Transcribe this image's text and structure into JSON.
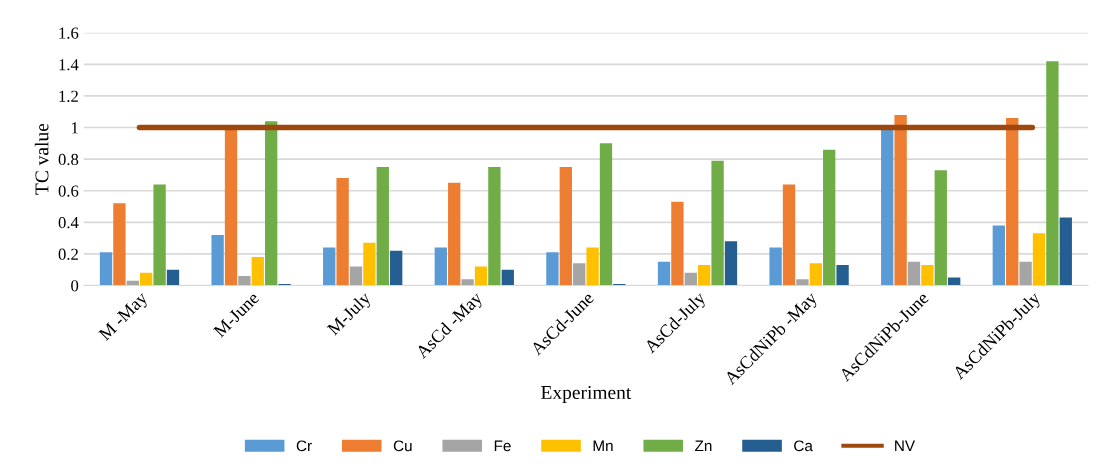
{
  "chart_data": {
    "type": "bar",
    "xlabel": "Experiment",
    "ylabel": "TC value",
    "categories": [
      "M -May",
      "M-June",
      "M-July",
      "AsCd -May",
      "AsCd-June",
      "AsCd-July",
      "AsCdNiPb -May",
      "AsCdNiPb-June",
      "AsCdNiPb-July"
    ],
    "series": [
      {
        "name": "Cr",
        "color": "#5b9bd5",
        "values": [
          0.21,
          0.32,
          0.24,
          0.24,
          0.21,
          0.15,
          0.24,
          1.0,
          0.38
        ]
      },
      {
        "name": "Cu",
        "color": "#ed7d31",
        "values": [
          0.52,
          1.0,
          0.68,
          0.65,
          0.75,
          0.53,
          0.64,
          1.08,
          1.06
        ]
      },
      {
        "name": "Fe",
        "color": "#a5a5a5",
        "values": [
          0.03,
          0.06,
          0.12,
          0.04,
          0.14,
          0.08,
          0.04,
          0.15,
          0.15
        ]
      },
      {
        "name": "Mn",
        "color": "#ffc000",
        "values": [
          0.08,
          0.18,
          0.27,
          0.12,
          0.24,
          0.13,
          0.14,
          0.13,
          0.33
        ]
      },
      {
        "name": "Zn",
        "color": "#70ad47",
        "values": [
          0.64,
          1.04,
          0.75,
          0.75,
          0.9,
          0.79,
          0.86,
          0.73,
          1.42
        ]
      },
      {
        "name": "Ca",
        "color": "#255e91",
        "values": [
          0.1,
          0.01,
          0.22,
          0.1,
          0.01,
          0.28,
          0.13,
          0.05,
          0.43
        ]
      },
      {
        "name": "NV",
        "type": "line",
        "color": "#9e480e",
        "values": [
          1,
          1,
          1,
          1,
          1,
          1,
          1,
          1,
          1
        ]
      }
    ],
    "ylim": [
      0,
      1.6
    ],
    "yticks": [
      0,
      0.2,
      0.4,
      0.6,
      0.8,
      1,
      1.2,
      1.4,
      1.6
    ],
    "grid": "y",
    "legend": "bottom"
  }
}
